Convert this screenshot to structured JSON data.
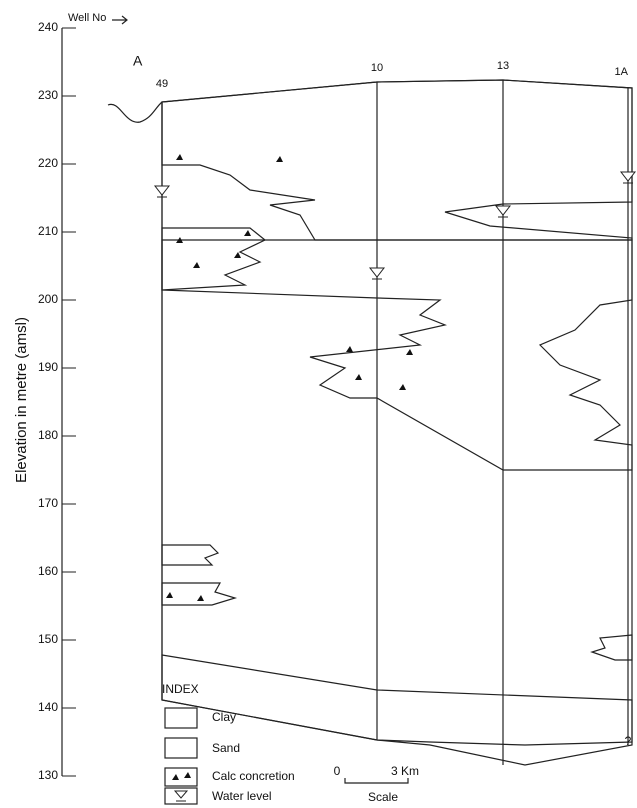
{
  "axis": {
    "label": "Elevation in metre (amsl)",
    "ticks": [
      240,
      230,
      220,
      210,
      200,
      190,
      180,
      170,
      160,
      150,
      140,
      130
    ]
  },
  "well_header": "Well No",
  "section_start": "A",
  "wells": [
    "49",
    "10",
    "13",
    "1A"
  ],
  "index": {
    "title": "INDEX",
    "items": [
      "Clay",
      "Sand",
      "Calc concretion",
      "Water level"
    ]
  },
  "scale": {
    "start": "0",
    "end": "3 Km",
    "label": "Scale"
  },
  "unknown": "?"
}
